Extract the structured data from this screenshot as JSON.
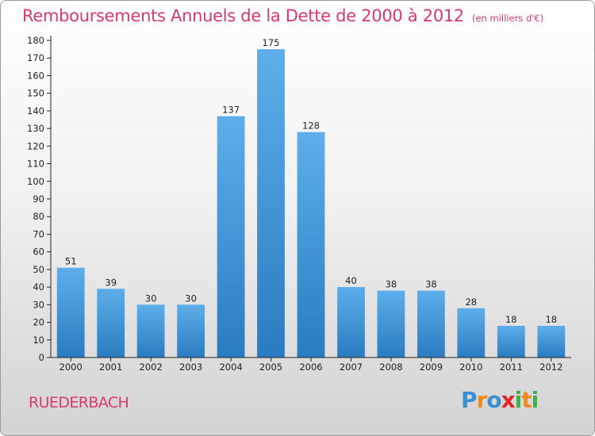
{
  "chart_data": {
    "type": "bar",
    "title": "Remboursements Annuels de la Dette de 2000 à 2012",
    "subtitle": "(en milliers d'€)",
    "categories": [
      "2000",
      "2001",
      "2002",
      "2003",
      "2004",
      "2005",
      "2006",
      "2007",
      "2008",
      "2009",
      "2010",
      "2011",
      "2012"
    ],
    "values": [
      51,
      39,
      30,
      30,
      137,
      175,
      128,
      40,
      38,
      38,
      28,
      18,
      18
    ],
    "ylim": [
      0,
      180
    ],
    "ytick_step": 10,
    "grid": false,
    "bar_color": "#4a9ee0"
  },
  "footer": {
    "commune": "RUEDERBACH",
    "logo_letters": [
      {
        "char": "P",
        "color": "#3a8fd0"
      },
      {
        "char": "r",
        "color": "#f08a1c"
      },
      {
        "char": "o",
        "color": "#3a8fd0"
      },
      {
        "char": "x",
        "color": "#e2262a"
      },
      {
        "char": "i",
        "color": "#3fb04a"
      },
      {
        "char": "t",
        "color": "#f08a1c"
      },
      {
        "char": "i",
        "color": "#3fb04a"
      }
    ]
  },
  "colors": {
    "title": "#d8396e",
    "axis": "#222222"
  }
}
